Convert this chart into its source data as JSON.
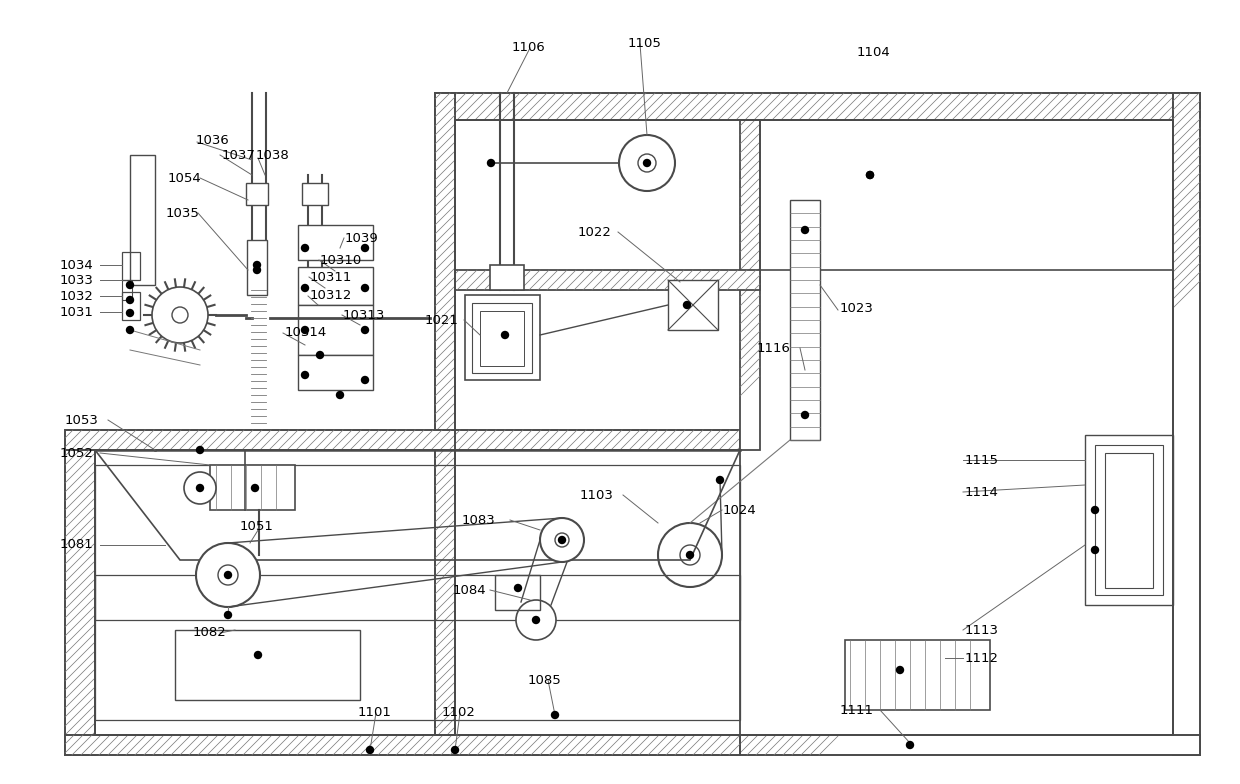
{
  "bg_color": "#ffffff",
  "lc": "#4a4a4a",
  "lc_thin": "#666666",
  "dot_color": "#000000",
  "label_color": "#000000",
  "hatch_color": "#777777",
  "hatch_lw": 0.5,
  "border_lw": 1.3,
  "thin_lw": 0.8
}
